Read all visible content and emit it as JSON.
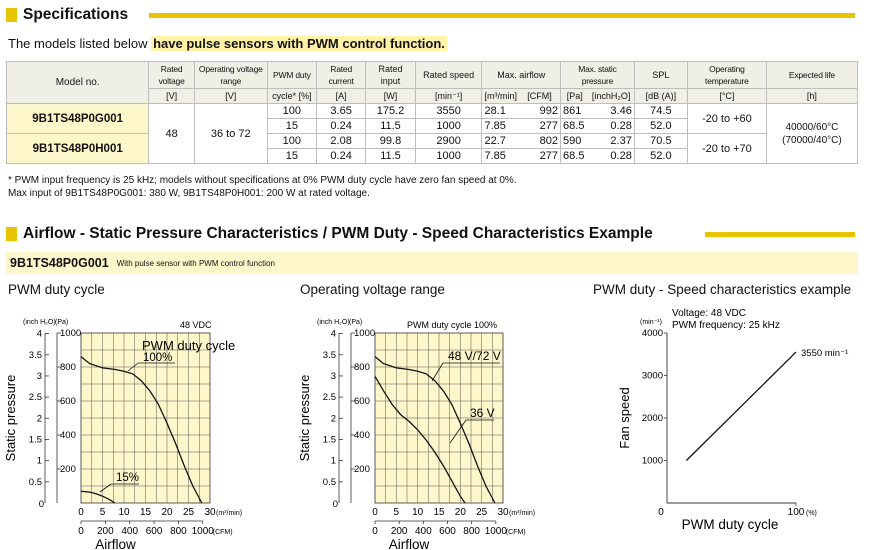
{
  "spec_header": "Specifications",
  "intro": {
    "pre": "The models listed below ",
    "highlight": "have pulse sensors with PWM control function."
  },
  "table": {
    "h_model": "Model no.",
    "h_rated_voltage": "Rated voltage",
    "u_rated_voltage": "[V]",
    "h_op_range": "Operating voltage range",
    "u_op_range": "[V]",
    "h_pwm1": "PWM duty",
    "h_pwm2": "cycle* [%]",
    "h_current": "Rated current",
    "u_current": "[A]",
    "h_input": "Rated input",
    "u_input": "[W]",
    "h_speed": "Rated speed",
    "u_speed": "[min⁻¹]",
    "h_airflow": "Max. airflow",
    "u_airflow_m": "[m³/min]",
    "u_airflow_c": "[CFM]",
    "h_pressure": "Max. static pressure",
    "u_pressure_pa": "[Pa]",
    "u_pressure_in": "[inchH₂O]",
    "h_spl": "SPL",
    "u_spl": "[dB (A)]",
    "h_temp": "Operating temperature",
    "u_temp": "[°C]",
    "h_life": "Expected life",
    "u_life": "[h]",
    "models": [
      "9B1TS48P0G001",
      "9B1TS48P0H001"
    ],
    "rated_voltage": "48",
    "op_range": "36 to 72",
    "rows": [
      {
        "pwm": "100",
        "current": "3.65",
        "input": "175.2",
        "speed": "3550",
        "air_m": "28.1",
        "air_c": "992",
        "pa": "861",
        "inh": "3.46",
        "spl": "74.5"
      },
      {
        "pwm": "15",
        "current": "0.24",
        "input": "11.5",
        "speed": "1000",
        "air_m": "7.85",
        "air_c": "277",
        "pa": "68.5",
        "inh": "0.28",
        "spl": "52.0"
      },
      {
        "pwm": "100",
        "current": "2.08",
        "input": "99.8",
        "speed": "2900",
        "air_m": "22.7",
        "air_c": "802",
        "pa": "590",
        "inh": "2.37",
        "spl": "70.5"
      },
      {
        "pwm": "15",
        "current": "0.24",
        "input": "11.5",
        "speed": "1000",
        "air_m": "7.85",
        "air_c": "277",
        "pa": "68.5",
        "inh": "0.28",
        "spl": "52.0"
      }
    ],
    "temps": [
      "-20 to +60",
      "-20 to +70"
    ],
    "life1": "40000/60°C",
    "life2": "(70000/40°C)"
  },
  "notes": {
    "n1": "* PWM input frequency is 25 kHz; models without specifications at 0% PWM duty cycle have zero fan speed at 0%.",
    "n2": "Max input of 9B1TS48P0G001: 380 W, 9B1TS48P0H001: 200 W at rated voltage."
  },
  "charts_header": "Airflow - Static Pressure Characteristics / PWM Duty - Speed Characteristics Example",
  "subbar": {
    "model": "9B1TS48P0G001",
    "desc": "With pulse sensor with PWM control function"
  },
  "chart_titles": [
    "PWM duty cycle",
    "Operating voltage range",
    "PWM duty - Speed characteristics example"
  ],
  "chart_data": [
    {
      "type": "line",
      "xlabel": "Airflow",
      "ylabel": "Static pressure",
      "x_unit": "(m³/min)",
      "x2_unit": "(CFM)",
      "y_unit_left": "(inch H₂O)",
      "y_unit_right": "(Pa)",
      "annotation": "48 VDC",
      "legend_title": "PWM duty cycle",
      "xlim": [
        0,
        30
      ],
      "ylim": [
        0,
        1000
      ],
      "x_ticks": [
        0,
        5,
        10,
        15,
        20,
        25,
        30
      ],
      "x2_ticks": [
        0,
        200,
        400,
        600,
        800,
        1000
      ],
      "y_ticks": [
        200,
        400,
        600,
        800,
        1000
      ],
      "y2_ticks": [
        0.5,
        1.0,
        1.5,
        2.0,
        2.5,
        3.0,
        3.5,
        4.0
      ],
      "series": [
        {
          "name": "100%",
          "x": [
            0,
            2,
            5,
            8,
            10,
            12,
            14,
            16,
            18,
            20,
            22,
            24,
            26,
            28.1
          ],
          "y": [
            861,
            820,
            795,
            785,
            775,
            760,
            720,
            660,
            580,
            470,
            350,
            220,
            100,
            0
          ]
        },
        {
          "name": "15%",
          "x": [
            0,
            1,
            2,
            3,
            4,
            5,
            6,
            7,
            7.85
          ],
          "y": [
            68.5,
            67,
            64,
            58,
            50,
            40,
            28,
            14,
            0
          ]
        }
      ]
    },
    {
      "type": "line",
      "xlabel": "Airflow",
      "ylabel": "Static pressure",
      "x_unit": "(m³/min)",
      "x2_unit": "(CFM)",
      "y_unit_left": "(inch H₂O)",
      "y_unit_right": "(Pa)",
      "annotation": "PWM duty cycle 100%",
      "xlim": [
        0,
        30
      ],
      "ylim": [
        0,
        1000
      ],
      "x_ticks": [
        0,
        5,
        10,
        15,
        20,
        25,
        30
      ],
      "x2_ticks": [
        0,
        200,
        400,
        600,
        800,
        1000
      ],
      "y_ticks": [
        200,
        400,
        600,
        800,
        1000
      ],
      "y2_ticks": [
        0.5,
        1.0,
        1.5,
        2.0,
        2.5,
        3.0,
        3.5,
        4.0
      ],
      "series": [
        {
          "name": "48 V/72 V",
          "x": [
            0,
            2,
            5,
            8,
            10,
            12,
            14,
            16,
            18,
            20,
            22,
            24,
            26,
            28.1
          ],
          "y": [
            861,
            820,
            795,
            785,
            775,
            760,
            720,
            660,
            580,
            470,
            350,
            220,
            100,
            0
          ]
        },
        {
          "name": "36 V",
          "x": [
            0,
            2,
            4,
            6,
            8,
            10,
            12,
            14,
            16,
            18,
            20,
            21.1
          ],
          "y": [
            745,
            660,
            580,
            520,
            480,
            430,
            370,
            300,
            220,
            130,
            40,
            0
          ]
        }
      ]
    },
    {
      "type": "line",
      "xlabel": "PWM duty cycle",
      "ylabel": "Fan speed",
      "x_unit": "(%)",
      "y_unit": "(min⁻¹)",
      "annotation1": "Voltage: 48 VDC",
      "annotation2": "PWM frequency: 25 kHz",
      "end_label": "3550 min⁻¹",
      "xlim": [
        0,
        100
      ],
      "ylim": [
        0,
        4000
      ],
      "x_ticks": [
        0,
        100
      ],
      "y_ticks": [
        1000,
        2000,
        3000,
        4000
      ],
      "series": [
        {
          "x": [
            15,
            100
          ],
          "y": [
            1000,
            3550
          ]
        }
      ]
    }
  ],
  "colors": {
    "accent": "#e8c400",
    "chart_bg": "#fff7cc",
    "header_bg": "#f0efe6"
  }
}
